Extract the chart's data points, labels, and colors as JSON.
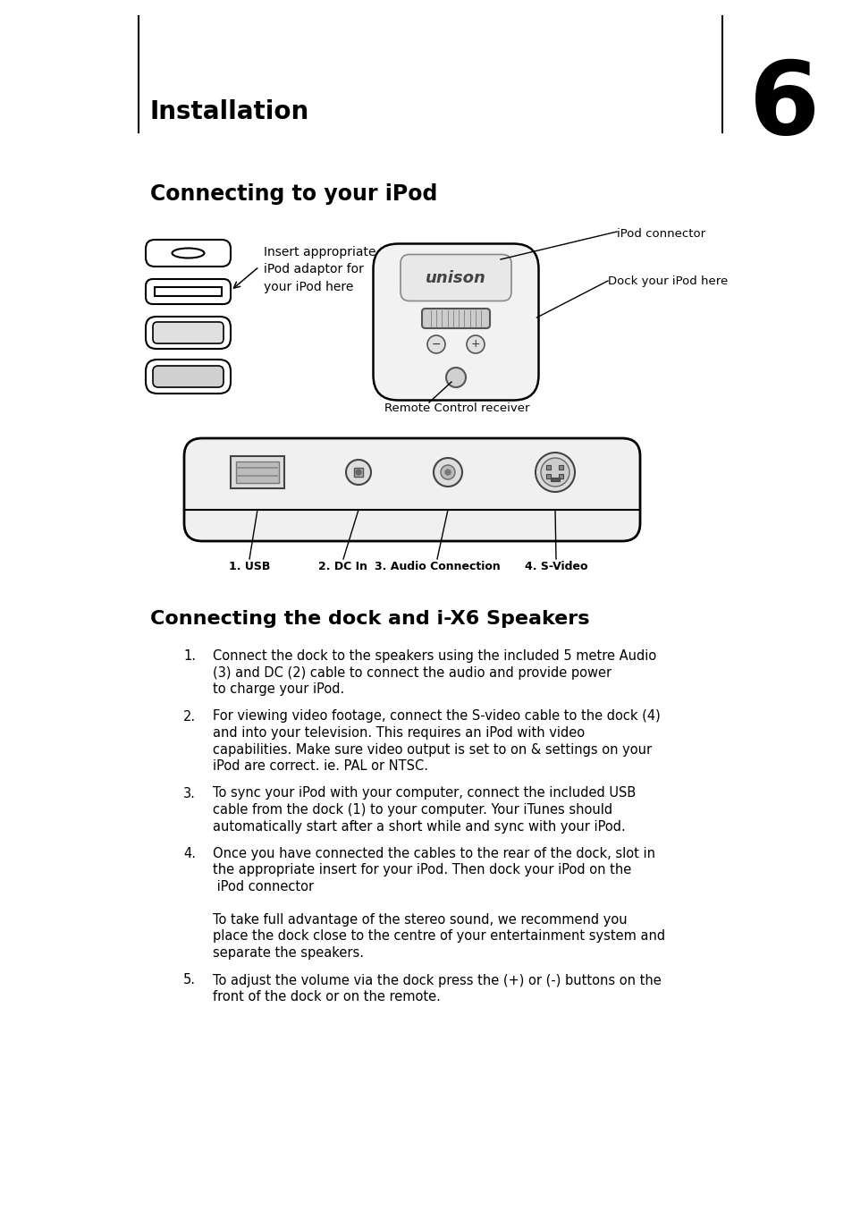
{
  "page_bg": "#ffffff",
  "title_text": "Installation",
  "chapter_num": "6",
  "section1_title": "Connecting to your iPod",
  "section2_title": "Connecting the dock and i-X6 Speakers",
  "adaptor_label": "Insert appropriate\niPod adaptor for\nyour iPod here",
  "ipod_connector_label": "iPod connector",
  "dock_label": "Dock your iPod here",
  "remote_label": "Remote Control receiver",
  "port_labels": [
    "1. USB",
    "2. DC In",
    "3. Audio Connection",
    "4. S-Video"
  ],
  "instructions": [
    [
      "Connect the dock to the speakers using the included 5 metre Audio",
      "(3) and DC (2) cable to connect the audio and provide power",
      "to charge your iPod."
    ],
    [
      "For viewing video footage, connect the S-video cable to the dock (4)",
      "and into your television. This requires an iPod with video",
      "capabilities. Make sure video output is set to on & settings on your",
      "iPod are correct. ie. PAL or NTSC."
    ],
    [
      "To sync your iPod with your computer, connect the included USB",
      "cable from the dock (1) to your computer. Your iTunes should",
      "automatically start after a short while and sync with your iPod."
    ],
    [
      "Once you have connected the cables to the rear of the dock, slot in",
      "the appropriate insert for your iPod. Then dock your iPod on the",
      " iPod connector",
      "",
      "To take full advantage of the stereo sound, we recommend you",
      "place the dock close to the centre of your entertainment system and",
      "separate the speakers."
    ],
    [
      "To adjust the volume via the dock press the (+) or (-) buttons on the",
      "front of the dock or on the remote."
    ]
  ],
  "text_color": "#000000"
}
